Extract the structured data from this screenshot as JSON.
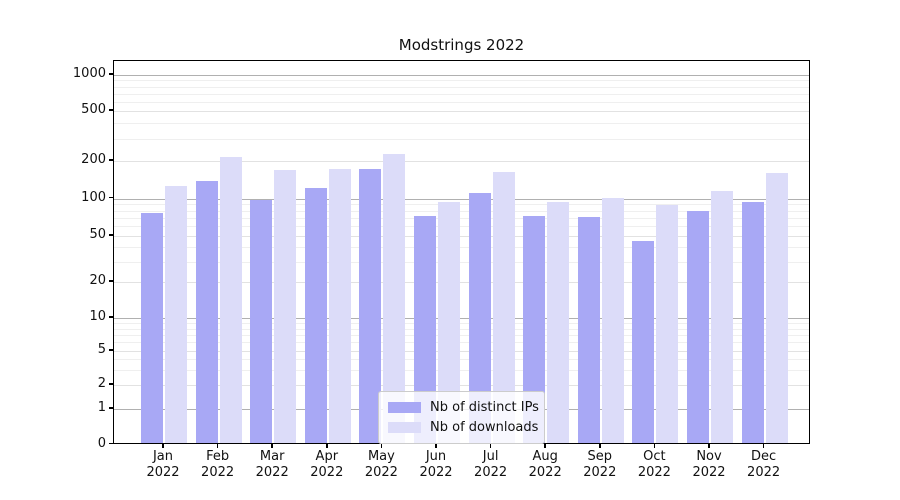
{
  "chart_data": {
    "type": "bar",
    "title": "Modstrings 2022",
    "categories": [
      "Jan",
      "Feb",
      "Mar",
      "Apr",
      "May",
      "Jun",
      "Jul",
      "Aug",
      "Sep",
      "Oct",
      "Nov",
      "Dec"
    ],
    "year_label": "2022",
    "series": [
      {
        "name": "Nb of distinct IPs",
        "color": "#a8a8f5",
        "values": [
          76,
          136,
          96,
          121,
          170,
          72,
          110,
          72,
          71,
          45,
          79,
          93
        ]
      },
      {
        "name": "Nb of downloads",
        "color": "#dcdcf9",
        "values": [
          126,
          214,
          169,
          170,
          226,
          93,
          161,
          93,
          100,
          88,
          114,
          158
        ]
      }
    ],
    "yticks": [
      0,
      1,
      2,
      5,
      10,
      20,
      50,
      100,
      200,
      500,
      1000
    ],
    "yscale": "symlog",
    "ylim": [
      0,
      1300
    ],
    "grid": true,
    "legend_position": "lower center",
    "grid_major_color": "#b0b0b0",
    "grid_minor_color": "#e2e2e2",
    "grid_faint_color": "#efefef"
  }
}
